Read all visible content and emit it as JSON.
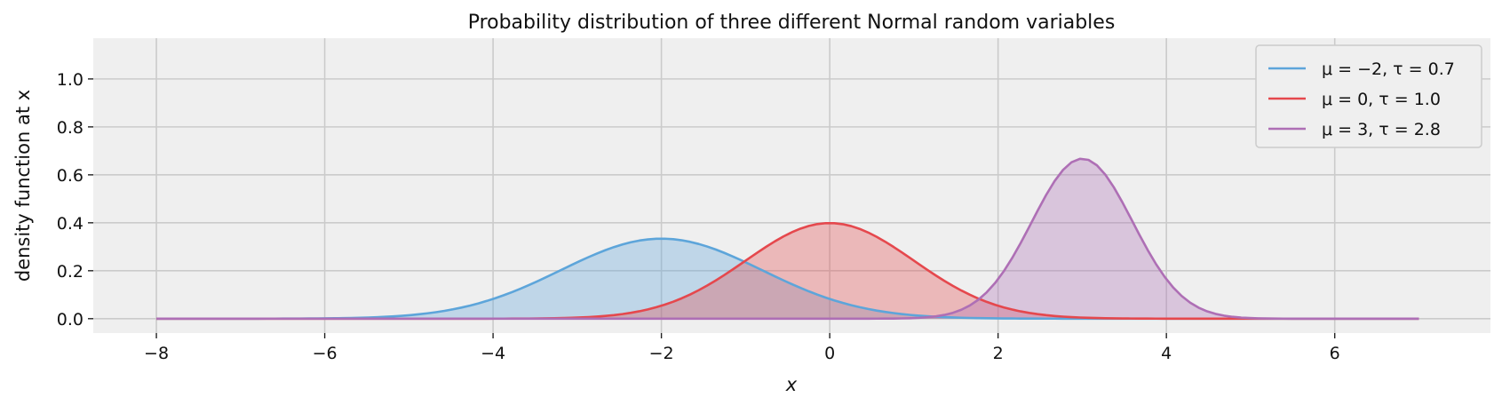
{
  "chart_data": {
    "type": "area",
    "title": "Probability distribution of three different Normal random variables",
    "xlabel": "x",
    "ylabel": "density function at x",
    "xlim": [
      -8.75,
      7.85
    ],
    "ylim": [
      -0.06,
      1.17
    ],
    "x_range": [
      -8,
      7
    ],
    "x_ticks": [
      -8,
      -6,
      -4,
      -2,
      0,
      2,
      4,
      6
    ],
    "x_tick_labels": [
      "−8",
      "−6",
      "−4",
      "−2",
      "0",
      "2",
      "4",
      "6"
    ],
    "y_ticks": [
      0.0,
      0.2,
      0.4,
      0.6,
      0.8,
      1.0
    ],
    "y_tick_labels": [
      "0.0",
      "0.2",
      "0.4",
      "0.6",
      "0.8",
      "1.0"
    ],
    "grid": true,
    "legend_position": "top-right",
    "series": [
      {
        "name": "μ = −2, τ = 0.7",
        "mu": -2,
        "tau": 0.7,
        "color": "#5DA5DA"
      },
      {
        "name": "μ = 0, τ = 1.0",
        "mu": 0,
        "tau": 1.0,
        "color": "#E5484D"
      },
      {
        "name": "μ = 3, τ = 2.8",
        "mu": 3,
        "tau": 2.8,
        "color": "#AE6FB5"
      }
    ]
  }
}
